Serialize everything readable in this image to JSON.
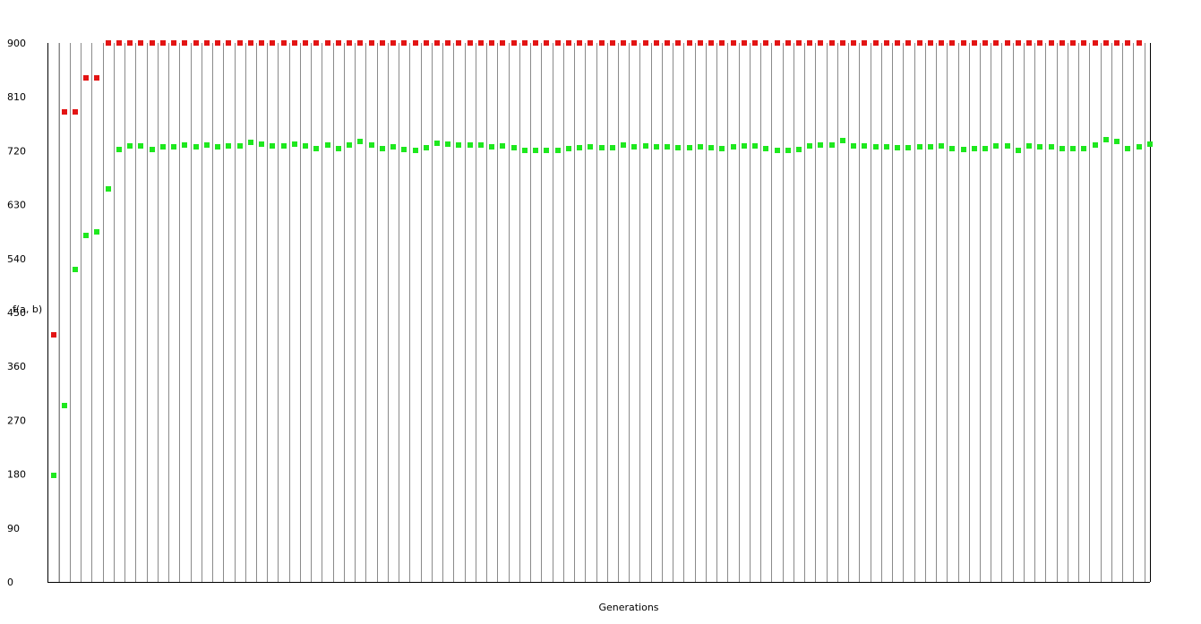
{
  "chart_data": {
    "type": "scatter",
    "title": "",
    "xlabel": "Generations",
    "ylabel": "f(a, b)",
    "ylim": [
      0,
      900
    ],
    "yticks": [
      0,
      90,
      180,
      270,
      360,
      450,
      540,
      630,
      720,
      810,
      900
    ],
    "grid": "vertical lines at each generation",
    "legend": "none",
    "generations": 100,
    "series": [
      {
        "role": "best",
        "color": "#e31414",
        "values": [
          412,
          785,
          785,
          842,
          842,
          900,
          900,
          900,
          900,
          900,
          900,
          900,
          900,
          900,
          900,
          900,
          900,
          900,
          900,
          900,
          900,
          900,
          900,
          900,
          900,
          900,
          900,
          900,
          900,
          900,
          900,
          900,
          900,
          900,
          900,
          900,
          900,
          900,
          900,
          900,
          900,
          900,
          900,
          900,
          900,
          900,
          900,
          900,
          900,
          900,
          900,
          900,
          900,
          900,
          900,
          900,
          900,
          900,
          900,
          900,
          900,
          900,
          900,
          900,
          900,
          900,
          900,
          900,
          900,
          900,
          900,
          900,
          900,
          900,
          900,
          900,
          900,
          900,
          900,
          900,
          900,
          900,
          900,
          900,
          900,
          900,
          900,
          900,
          900,
          900,
          900,
          900,
          900,
          900,
          900,
          900,
          900,
          900,
          900,
          900
        ]
      },
      {
        "role": "average",
        "color": "#1ee81e",
        "values": [
          178,
          295,
          522,
          578,
          585,
          656,
          722,
          728,
          728,
          722,
          726,
          726,
          729,
          726,
          730,
          726,
          728,
          728,
          734,
          731,
          728,
          728,
          731,
          728,
          724,
          729,
          724,
          730,
          735,
          730,
          724,
          727,
          722,
          721,
          725,
          733,
          731,
          730,
          730,
          729,
          727,
          728,
          725,
          721,
          721,
          721,
          720,
          724,
          725,
          727,
          725,
          725,
          729,
          726,
          728,
          726,
          726,
          725,
          725,
          727,
          725,
          724,
          726,
          728,
          728,
          723,
          720,
          721,
          722,
          728,
          729,
          730,
          737,
          728,
          728,
          726,
          726,
          725,
          725,
          726,
          727,
          728,
          723,
          722,
          723,
          724,
          728,
          728,
          720,
          728,
          726,
          726,
          724,
          724,
          724,
          729,
          738,
          735,
          724,
          726,
          731
        ]
      }
    ]
  }
}
